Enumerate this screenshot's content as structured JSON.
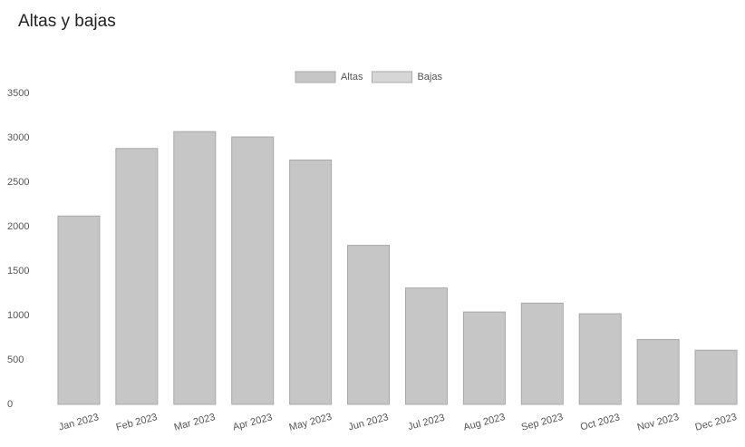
{
  "chart_data": {
    "type": "bar",
    "title": "Altas y bajas",
    "categories": [
      "Jan 2023",
      "Feb 2023",
      "Mar 2023",
      "Apr 2023",
      "May 2023",
      "Jun 2023",
      "Jul 2023",
      "Aug 2023",
      "Sep 2023",
      "Oct 2023",
      "Nov 2023",
      "Dec 2023"
    ],
    "series": [
      {
        "name": "Altas",
        "color": "#c6c6c6",
        "values": [
          2120,
          2880,
          3070,
          3010,
          2750,
          1790,
          1310,
          1040,
          1140,
          1020,
          730,
          610
        ]
      },
      {
        "name": "Bajas",
        "color": "#d6d6d6",
        "values": [
          null,
          null,
          null,
          null,
          null,
          null,
          null,
          null,
          null,
          null,
          null,
          null
        ]
      }
    ],
    "ylim": [
      0,
      3500
    ],
    "yticks": [
      0,
      500,
      1000,
      1500,
      2000,
      2500,
      3000,
      3500
    ],
    "grid": false,
    "legend": "top"
  }
}
